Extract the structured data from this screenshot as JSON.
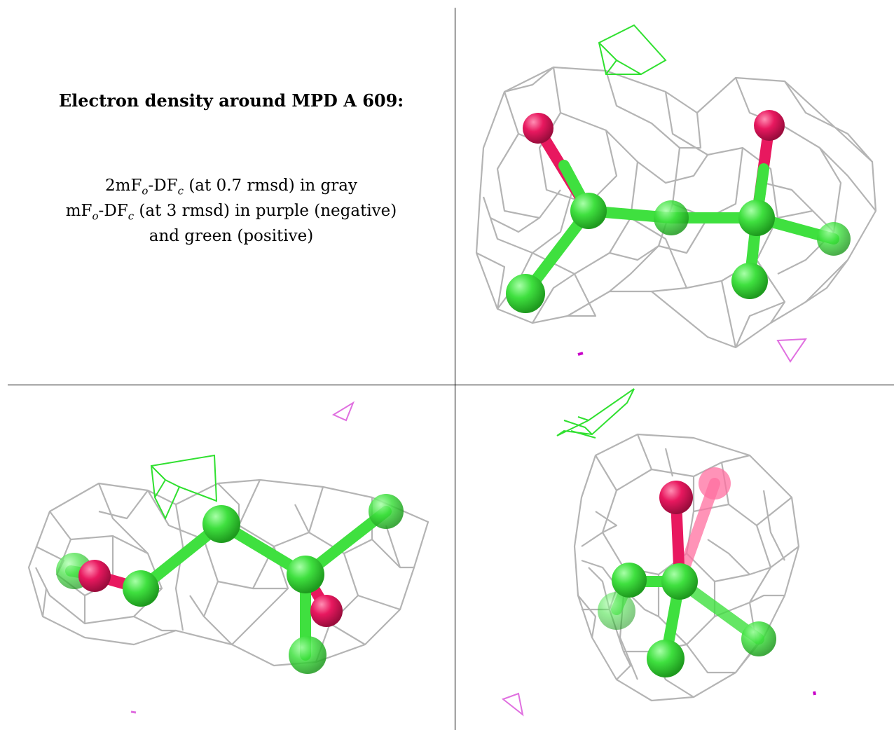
{
  "caption": {
    "title": "Electron density around MPD A 609:",
    "line1_pre": "2mF",
    "line1_sub1": "o",
    "line1_mid": "-DF",
    "line1_sub2": "c",
    "line1_post": " (at 0.7 rmsd) in gray",
    "line2_pre": "mF",
    "line2_sub1": "o",
    "line2_mid": "-DF",
    "line2_sub2": "c",
    "line2_post": " (at 3 rmsd) in purple (negative)",
    "line3": "and green (positive)"
  },
  "colors": {
    "mesh": "#b4b4b4",
    "carbon": "#3fe03f",
    "oxygen": "#e8185f",
    "positive": "#30e030",
    "negative": "#e070e0"
  },
  "views": [
    {
      "name": "view-top-right"
    },
    {
      "name": "view-bottom-left"
    },
    {
      "name": "view-bottom-right"
    }
  ]
}
